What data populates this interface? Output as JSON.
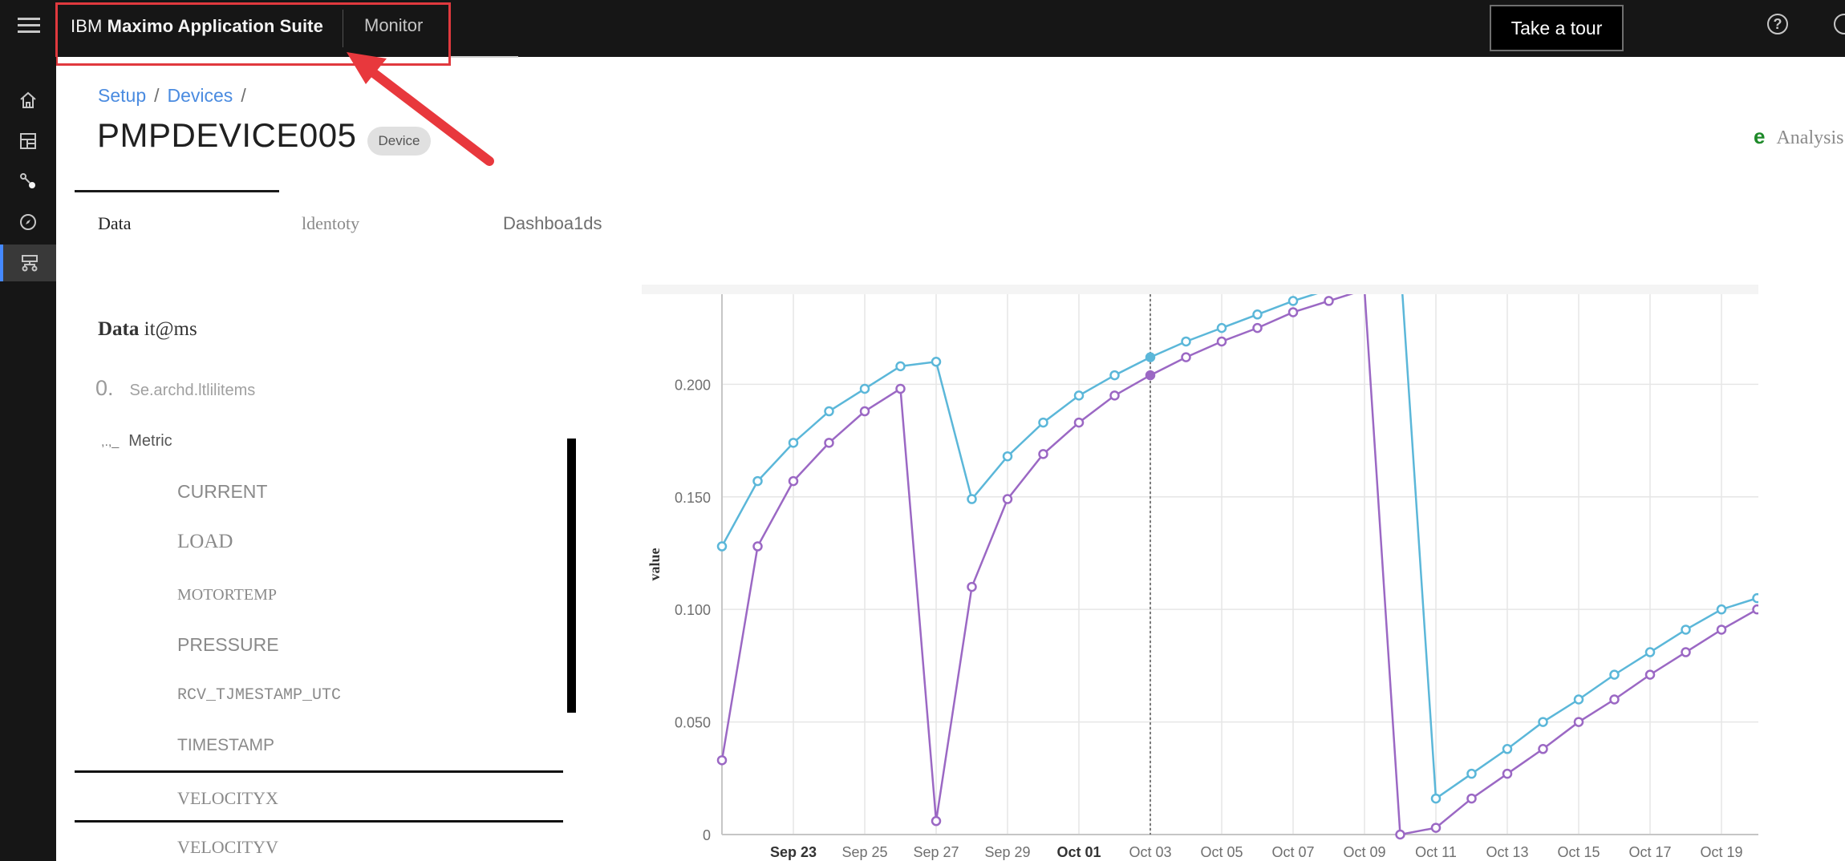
{
  "header": {
    "product_prefix": "IBM",
    "product_name": "Maximo Application Suite",
    "app_name": "Monitor",
    "tour_button": "Take a tour",
    "help_icon": "help-circle-icon",
    "user_icon": "user-avatar-icon",
    "highlight_color": "#e0393e"
  },
  "sidenav": {
    "items": [
      "home-icon",
      "dashboard-icon",
      "connections-icon",
      "compass-icon",
      "devices-icon"
    ],
    "active_index": 4
  },
  "breadcrumb": [
    "Setup",
    "Devices",
    ""
  ],
  "page": {
    "title": "PMPDEVICE005",
    "tag": "Device",
    "analysis_letter": "e",
    "analysis_label": "Analysis"
  },
  "tabs": [
    "Data",
    "ldentoty",
    "Dashboa1ds"
  ],
  "data_items": {
    "title_bold": "Data",
    "title_rest": "it@ms",
    "search_count": "0.",
    "search_placeholder": "Se.archd.ltlilitems",
    "group_prefix": ",.,_",
    "group_label": "Metric",
    "items": [
      "CURRENT",
      "LOAD",
      "MOTORTEMP",
      "PRESSURE",
      "RCV_TJMESTAMP_UTC",
      "TIMESTAMP",
      "VELOCITYX",
      "VELOCITYV"
    ]
  },
  "chart_data": {
    "type": "line",
    "ylabel": "value",
    "xlabel": "",
    "ylim": [
      0,
      0.24
    ],
    "y_ticks": [
      "0",
      "0.050",
      "0.100",
      "0.150",
      "0.200"
    ],
    "x_ticks": [
      "Sep 23",
      "Sep 25",
      "Sep 27",
      "Sep 29",
      "Oct 01",
      "Oct 03",
      "Oct 05",
      "Oct 07",
      "Oct 09",
      "Oct 11",
      "Oct 13",
      "Oct 15",
      "Oct 17",
      "Oct 19"
    ],
    "x_ticks_bold": [
      "Sep 23",
      "Oct 01"
    ],
    "x": [
      "Sep 21",
      "Sep 22",
      "Sep 23",
      "Sep 24",
      "Sep 25",
      "Sep 26",
      "Sep 27",
      "Sep 28",
      "Sep 29",
      "Sep 30",
      "Oct 01",
      "Oct 02",
      "Oct 03",
      "Oct 04",
      "Oct 05",
      "Oct 06",
      "Oct 07",
      "Oct 08",
      "Oct 09",
      "Oct 10",
      "Oct 11",
      "Oct 12",
      "Oct 13",
      "Oct 14",
      "Oct 15",
      "Oct 16",
      "Oct 17",
      "Oct 18",
      "Oct 19",
      "Oct 20"
    ],
    "marker_line": "Oct 03",
    "series": [
      {
        "color": "#5bb7d9",
        "values": [
          0.128,
          0.157,
          0.174,
          0.188,
          0.198,
          0.208,
          0.21,
          0.149,
          0.168,
          0.183,
          0.195,
          0.204,
          0.212,
          0.219,
          0.225,
          0.231,
          0.237,
          0.242,
          0.25,
          0.255,
          0.016,
          0.027,
          0.038,
          0.05,
          0.06,
          0.071,
          0.081,
          0.091,
          0.1,
          0.105
        ]
      },
      {
        "color": "#9b68c4",
        "values": [
          0.033,
          0.128,
          0.157,
          0.174,
          0.188,
          0.198,
          0.006,
          0.11,
          0.149,
          0.169,
          0.183,
          0.195,
          0.204,
          0.212,
          0.219,
          0.225,
          0.232,
          0.237,
          0.242,
          0.0,
          0.003,
          0.016,
          0.027,
          0.038,
          0.05,
          0.06,
          0.071,
          0.081,
          0.091,
          0.1
        ]
      }
    ],
    "grid": true
  }
}
